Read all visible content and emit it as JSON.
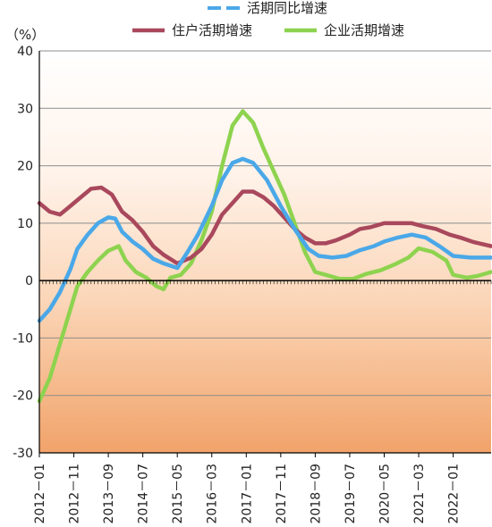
{
  "chart_data": {
    "type": "line",
    "unit_label": "（%）",
    "ylim": [
      -30,
      40
    ],
    "yticks": [
      -30,
      -20,
      -10,
      0,
      10,
      20,
      30,
      40
    ],
    "x_tick_labels": [
      "2012－01",
      "2012－11",
      "2013－09",
      "2014－07",
      "2015－05",
      "2016－03",
      "2017－01",
      "2017－11",
      "2018－09",
      "2019－07",
      "2020－05",
      "2021－03",
      "2022－01"
    ],
    "x_range": [
      "2012-01",
      "2022-12"
    ],
    "grid": "horizontal",
    "legend_position": "top",
    "series": [
      {
        "name": "活期同比增速",
        "color": "#4aa8e8",
        "dashed": true,
        "points": [
          [
            "2012-01",
            -7
          ],
          [
            "2012-04",
            -5
          ],
          [
            "2012-07",
            -2
          ],
          [
            "2012-10",
            2
          ],
          [
            "2012-12",
            5.5
          ],
          [
            "2013-03",
            8
          ],
          [
            "2013-06",
            10
          ],
          [
            "2013-09",
            11
          ],
          [
            "2013-11",
            10.8
          ],
          [
            "2014-01",
            8.5
          ],
          [
            "2014-04",
            6.8
          ],
          [
            "2014-07",
            5.5
          ],
          [
            "2014-10",
            3.8
          ],
          [
            "2015-01",
            3
          ],
          [
            "2015-05",
            2.2
          ],
          [
            "2015-08",
            5
          ],
          [
            "2015-11",
            8
          ],
          [
            "2016-03",
            13
          ],
          [
            "2016-06",
            17.5
          ],
          [
            "2016-09",
            20.5
          ],
          [
            "2016-12",
            21.2
          ],
          [
            "2017-03",
            20.5
          ],
          [
            "2017-07",
            17.5
          ],
          [
            "2017-11",
            13
          ],
          [
            "2018-03",
            9
          ],
          [
            "2018-07",
            5.5
          ],
          [
            "2018-10",
            4.3
          ],
          [
            "2019-02",
            4
          ],
          [
            "2019-06",
            4.3
          ],
          [
            "2019-10",
            5.3
          ],
          [
            "2020-02",
            6
          ],
          [
            "2020-05",
            6.8
          ],
          [
            "2020-09",
            7.5
          ],
          [
            "2021-01",
            8
          ],
          [
            "2021-05",
            7.5
          ],
          [
            "2021-09",
            6
          ],
          [
            "2022-01",
            4.3
          ],
          [
            "2022-06",
            4
          ],
          [
            "2022-12",
            4
          ]
        ]
      },
      {
        "name": "住户活期增速",
        "color": "#a9485c",
        "dashed": false,
        "points": [
          [
            "2012-01",
            13.5
          ],
          [
            "2012-04",
            12
          ],
          [
            "2012-07",
            11.5
          ],
          [
            "2012-10",
            13
          ],
          [
            "2013-01",
            14.5
          ],
          [
            "2013-04",
            16
          ],
          [
            "2013-07",
            16.2
          ],
          [
            "2013-10",
            15
          ],
          [
            "2014-01",
            12
          ],
          [
            "2014-04",
            10.5
          ],
          [
            "2014-07",
            8.5
          ],
          [
            "2014-10",
            6
          ],
          [
            "2015-01",
            4.5
          ],
          [
            "2015-05",
            3
          ],
          [
            "2015-09",
            4
          ],
          [
            "2015-12",
            5.5
          ],
          [
            "2016-03",
            8
          ],
          [
            "2016-06",
            11.5
          ],
          [
            "2016-09",
            13.5
          ],
          [
            "2016-12",
            15.5
          ],
          [
            "2017-03",
            15.5
          ],
          [
            "2017-06",
            14.5
          ],
          [
            "2017-09",
            13
          ],
          [
            "2017-12",
            11
          ],
          [
            "2018-03",
            9
          ],
          [
            "2018-06",
            7.5
          ],
          [
            "2018-09",
            6.5
          ],
          [
            "2018-12",
            6.5
          ],
          [
            "2019-03",
            7
          ],
          [
            "2019-07",
            8
          ],
          [
            "2019-10",
            9
          ],
          [
            "2020-01",
            9.3
          ],
          [
            "2020-05",
            10
          ],
          [
            "2020-09",
            10
          ],
          [
            "2021-01",
            10
          ],
          [
            "2021-04",
            9.5
          ],
          [
            "2021-08",
            9
          ],
          [
            "2021-12",
            8
          ],
          [
            "2022-03",
            7.5
          ],
          [
            "2022-07",
            6.7
          ],
          [
            "2022-12",
            6
          ]
        ]
      },
      {
        "name": "企业活期增速",
        "color": "#8ed34f",
        "dashed": false,
        "points": [
          [
            "2012-01",
            -21
          ],
          [
            "2012-04",
            -17
          ],
          [
            "2012-07",
            -11
          ],
          [
            "2012-10",
            -5
          ],
          [
            "2012-12",
            -1
          ],
          [
            "2013-03",
            1.5
          ],
          [
            "2013-06",
            3.5
          ],
          [
            "2013-09",
            5.2
          ],
          [
            "2013-12",
            6
          ],
          [
            "2014-02",
            3.5
          ],
          [
            "2014-05",
            1.5
          ],
          [
            "2014-08",
            0.5
          ],
          [
            "2014-11",
            -1
          ],
          [
            "2015-01",
            -1.5
          ],
          [
            "2015-03",
            0.5
          ],
          [
            "2015-06",
            1
          ],
          [
            "2015-09",
            3
          ],
          [
            "2015-12",
            7
          ],
          [
            "2016-03",
            12
          ],
          [
            "2016-06",
            20
          ],
          [
            "2016-09",
            27
          ],
          [
            "2016-12",
            29.5
          ],
          [
            "2017-03",
            27.5
          ],
          [
            "2017-06",
            23
          ],
          [
            "2017-09",
            19
          ],
          [
            "2017-12",
            15
          ],
          [
            "2018-03",
            10
          ],
          [
            "2018-06",
            5
          ],
          [
            "2018-09",
            1.5
          ],
          [
            "2018-12",
            1
          ],
          [
            "2019-04",
            0.3
          ],
          [
            "2019-08",
            0.3
          ],
          [
            "2019-12",
            1.2
          ],
          [
            "2020-04",
            1.8
          ],
          [
            "2020-08",
            2.8
          ],
          [
            "2020-12",
            4
          ],
          [
            "2021-03",
            5.6
          ],
          [
            "2021-07",
            5
          ],
          [
            "2021-11",
            3.5
          ],
          [
            "2022-01",
            1
          ],
          [
            "2022-05",
            0.5
          ],
          [
            "2022-08",
            0.8
          ],
          [
            "2022-12",
            1.5
          ]
        ]
      }
    ]
  }
}
